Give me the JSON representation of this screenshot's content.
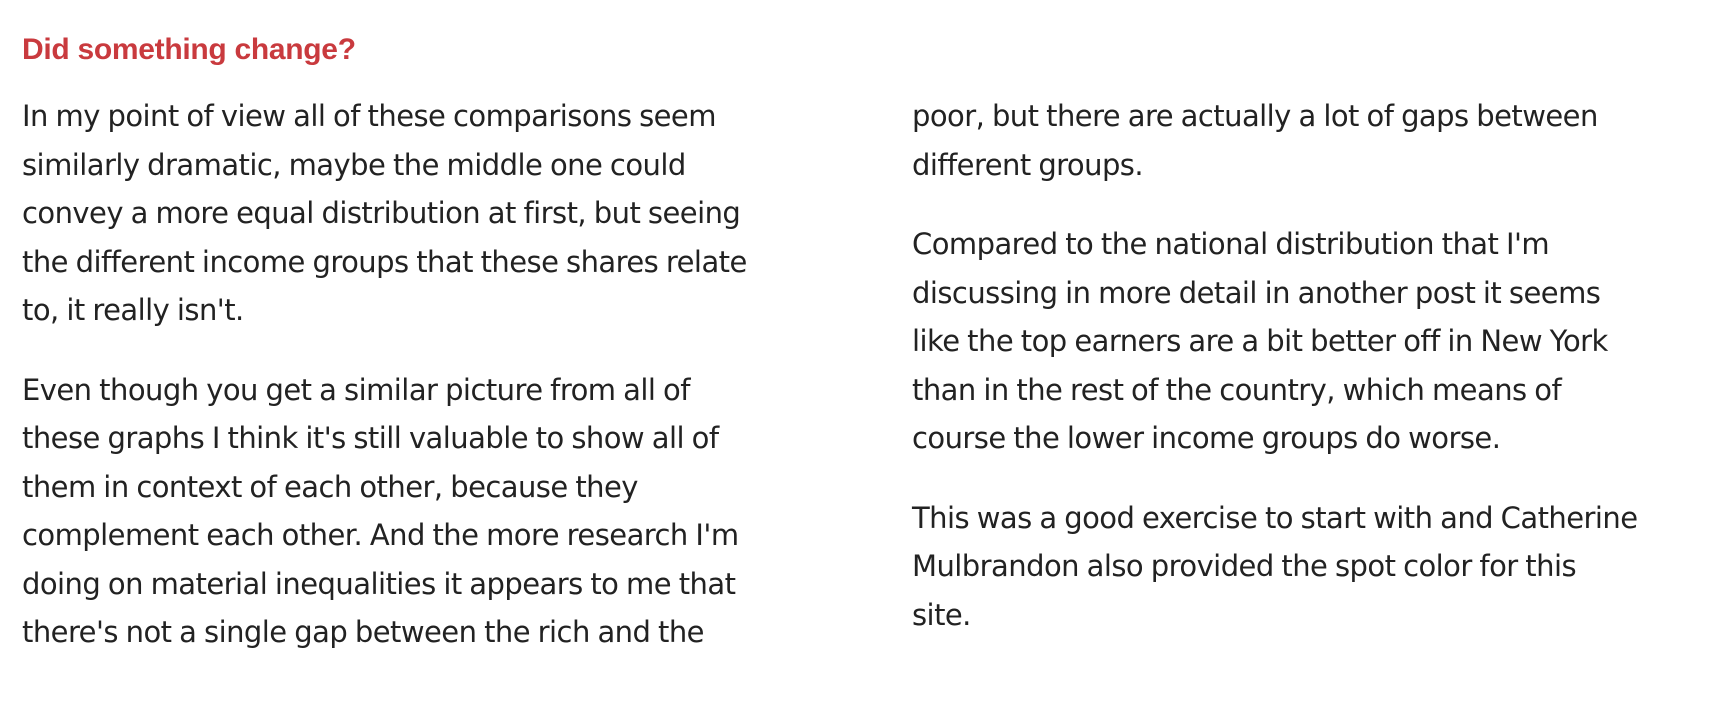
{
  "colors": {
    "accent": "#c93a3e",
    "text": "#222222",
    "background": "#ffffff"
  },
  "heading": "Did something change?",
  "left_column": {
    "paragraphs": [
      {
        "lines": [
          "In my point of view all of these comparisons seem",
          "similarly dramatic, maybe the middle one could",
          "convey a more equal distribution at first, but seeing",
          "the different income groups that these shares relate",
          "to, it really isn't."
        ]
      },
      {
        "lines": [
          "Even though you get a similar picture from all of",
          "these graphs I think it's still valuable to show all of",
          "them in context of each other, because they",
          "complement each other. And the more research I'm",
          "doing on material inequalities it appears to me that",
          "there's not a single gap between the rich and the"
        ]
      }
    ]
  },
  "right_column": {
    "paragraphs": [
      {
        "lines": [
          "poor, but there are actually a lot of gaps between",
          "different groups."
        ]
      },
      {
        "lines": [
          "Compared to the national distribution that I'm",
          "discussing in more detail in another post it seems",
          "like the top earners are a bit better off in New York",
          "than in the rest of the country, which means of",
          "course the lower income groups do worse."
        ]
      },
      {
        "lines": [
          "This was a good exercise to start with and Catherine",
          "Mulbrandon also provided the spot color for this",
          "site."
        ]
      }
    ]
  }
}
